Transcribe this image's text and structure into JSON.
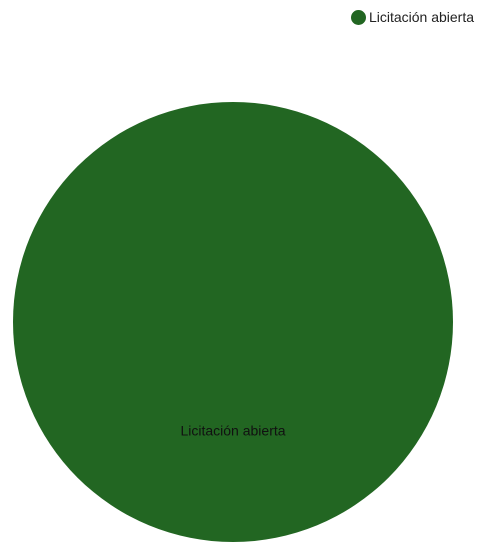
{
  "chart_data": {
    "type": "pie",
    "title": "",
    "legend_position": "top-right",
    "slices": [
      {
        "name": "Licitación abierta",
        "value": 1,
        "color": "#226622",
        "label": "Licitación abierta"
      }
    ]
  }
}
